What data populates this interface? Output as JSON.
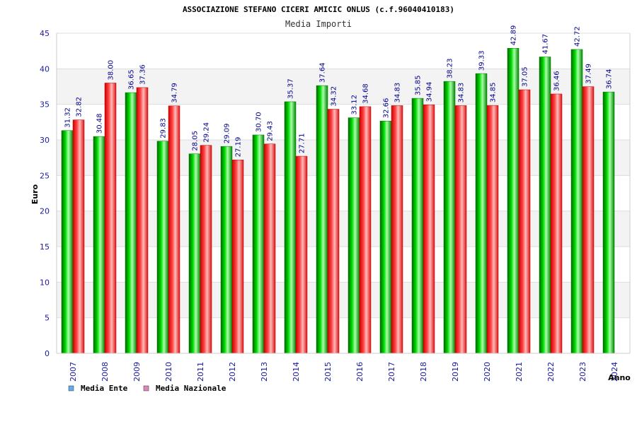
{
  "chart_data": {
    "type": "bar",
    "title": "ASSOCIAZIONE STEFANO CICERI AMICIC ONLUS (c.f.96040410183)",
    "subtitle": "Media Importi",
    "xlabel": "Anno",
    "ylabel": "Euro",
    "ylim": [
      0,
      45
    ],
    "yticks": [
      0,
      5,
      10,
      15,
      20,
      25,
      30,
      35,
      40,
      45
    ],
    "grid": true,
    "legend_position": "bottom-left",
    "categories": [
      "2007",
      "2008",
      "2009",
      "2010",
      "2011",
      "2012",
      "2013",
      "2014",
      "2015",
      "2016",
      "2017",
      "2018",
      "2019",
      "2020",
      "2021",
      "2022",
      "2023",
      "2024"
    ],
    "series": [
      {
        "name": "Media Ente",
        "color": "#00cc00",
        "legend_color": "#66aaee",
        "values": [
          31.32,
          30.48,
          36.65,
          29.83,
          28.05,
          29.09,
          30.7,
          35.37,
          37.64,
          33.12,
          32.66,
          35.85,
          38.23,
          39.33,
          42.89,
          41.67,
          42.72,
          36.74
        ],
        "labels": [
          "31.32",
          "30.48",
          "36.65",
          "29.83",
          "28.05",
          "29.09",
          "30.70",
          "35.37",
          "37.64",
          "33.12",
          "32.66",
          "35.85",
          "38.23",
          "39.33",
          "42.89",
          "41.67",
          "42.72",
          "36.74"
        ]
      },
      {
        "name": "Media Nazionale",
        "color": "#ee2233",
        "legend_color": "#dd88bb",
        "values": [
          32.82,
          38.0,
          37.36,
          34.79,
          29.24,
          27.19,
          29.43,
          27.71,
          34.32,
          34.68,
          34.83,
          34.94,
          34.83,
          34.85,
          37.05,
          36.46,
          37.49,
          null
        ],
        "labels": [
          "32.82",
          "38.00",
          "37.36",
          "34.79",
          "29.24",
          "27.19",
          "29.43",
          "27.71",
          "34.32",
          "34.68",
          "34.83",
          "34.94",
          "34.83",
          "34.85",
          "37.05",
          "36.46",
          "37.49",
          null
        ]
      }
    ]
  }
}
